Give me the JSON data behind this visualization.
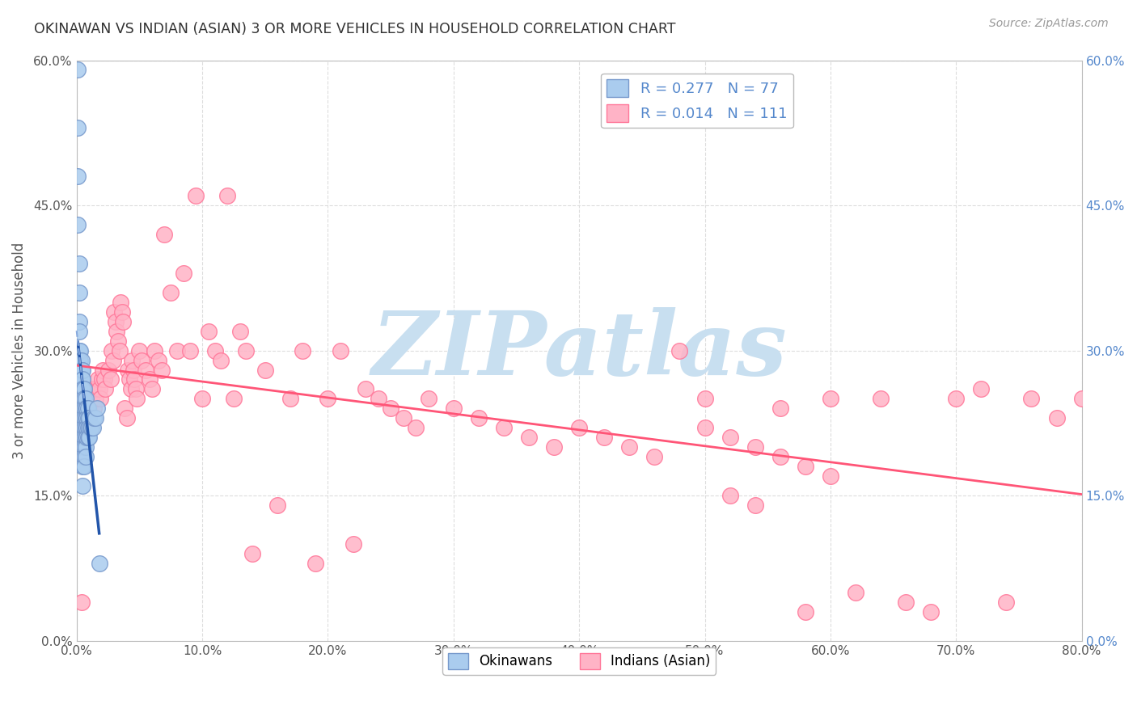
{
  "title": "OKINAWAN VS INDIAN (ASIAN) 3 OR MORE VEHICLES IN HOUSEHOLD CORRELATION CHART",
  "source": "Source: ZipAtlas.com",
  "ylabel": "3 or more Vehicles in Household",
  "xlim": [
    0.0,
    0.8
  ],
  "ylim": [
    0.0,
    0.6
  ],
  "xticks": [
    0.0,
    0.1,
    0.2,
    0.3,
    0.4,
    0.5,
    0.6,
    0.7,
    0.8
  ],
  "xtick_labels": [
    "0.0%",
    "10.0%",
    "20.0%",
    "30.0%",
    "40.0%",
    "50.0%",
    "60.0%",
    "70.0%",
    "80.0%"
  ],
  "yticks": [
    0.0,
    0.15,
    0.3,
    0.45,
    0.6
  ],
  "ytick_labels": [
    "0.0%",
    "15.0%",
    "30.0%",
    "45.0%",
    "60.0%"
  ],
  "legend1_label": "R = 0.277   N = 77",
  "legend2_label": "R = 0.014   N = 111",
  "group1_name": "Okinawans",
  "group2_name": "Indians (Asian)",
  "background_color": "#FFFFFF",
  "watermark": "ZIPatlas",
  "watermark_color": "#C8DFF0",
  "grid_color": "#DDDDDD",
  "ok_x": [
    0.001,
    0.001,
    0.001,
    0.001,
    0.002,
    0.002,
    0.002,
    0.002,
    0.002,
    0.002,
    0.002,
    0.002,
    0.003,
    0.003,
    0.003,
    0.003,
    0.003,
    0.003,
    0.003,
    0.003,
    0.003,
    0.004,
    0.004,
    0.004,
    0.004,
    0.004,
    0.004,
    0.004,
    0.004,
    0.004,
    0.004,
    0.005,
    0.005,
    0.005,
    0.005,
    0.005,
    0.005,
    0.005,
    0.005,
    0.005,
    0.005,
    0.005,
    0.005,
    0.006,
    0.006,
    0.006,
    0.006,
    0.006,
    0.006,
    0.006,
    0.006,
    0.006,
    0.007,
    0.007,
    0.007,
    0.007,
    0.007,
    0.007,
    0.007,
    0.008,
    0.008,
    0.008,
    0.008,
    0.009,
    0.009,
    0.009,
    0.009,
    0.01,
    0.01,
    0.01,
    0.011,
    0.012,
    0.013,
    0.014,
    0.015,
    0.016,
    0.018
  ],
  "ok_y": [
    0.59,
    0.53,
    0.48,
    0.43,
    0.39,
    0.36,
    0.33,
    0.32,
    0.3,
    0.29,
    0.28,
    0.27,
    0.3,
    0.29,
    0.28,
    0.27,
    0.26,
    0.25,
    0.24,
    0.23,
    0.22,
    0.29,
    0.28,
    0.27,
    0.26,
    0.25,
    0.24,
    0.23,
    0.22,
    0.21,
    0.2,
    0.28,
    0.27,
    0.26,
    0.25,
    0.24,
    0.23,
    0.22,
    0.21,
    0.2,
    0.19,
    0.18,
    0.16,
    0.26,
    0.25,
    0.24,
    0.23,
    0.22,
    0.21,
    0.2,
    0.19,
    0.18,
    0.25,
    0.24,
    0.23,
    0.22,
    0.21,
    0.2,
    0.19,
    0.24,
    0.23,
    0.22,
    0.21,
    0.24,
    0.23,
    0.22,
    0.21,
    0.23,
    0.22,
    0.21,
    0.22,
    0.22,
    0.22,
    0.23,
    0.23,
    0.24,
    0.08
  ],
  "ind_x": [
    0.004,
    0.005,
    0.006,
    0.007,
    0.008,
    0.009,
    0.01,
    0.011,
    0.012,
    0.013,
    0.014,
    0.015,
    0.016,
    0.017,
    0.018,
    0.019,
    0.02,
    0.021,
    0.022,
    0.023,
    0.025,
    0.027,
    0.028,
    0.029,
    0.03,
    0.031,
    0.032,
    0.033,
    0.034,
    0.035,
    0.036,
    0.037,
    0.038,
    0.04,
    0.041,
    0.042,
    0.043,
    0.044,
    0.045,
    0.046,
    0.047,
    0.048,
    0.05,
    0.052,
    0.055,
    0.058,
    0.06,
    0.062,
    0.065,
    0.068,
    0.07,
    0.075,
    0.08,
    0.085,
    0.09,
    0.095,
    0.1,
    0.105,
    0.11,
    0.115,
    0.12,
    0.125,
    0.13,
    0.135,
    0.14,
    0.15,
    0.16,
    0.17,
    0.18,
    0.19,
    0.2,
    0.21,
    0.22,
    0.23,
    0.24,
    0.25,
    0.26,
    0.27,
    0.28,
    0.3,
    0.32,
    0.34,
    0.36,
    0.38,
    0.4,
    0.42,
    0.44,
    0.46,
    0.48,
    0.5,
    0.52,
    0.54,
    0.56,
    0.58,
    0.6,
    0.62,
    0.64,
    0.66,
    0.68,
    0.7,
    0.72,
    0.74,
    0.76,
    0.78,
    0.8,
    0.5,
    0.52,
    0.54,
    0.56,
    0.58,
    0.6
  ],
  "ind_y": [
    0.04,
    0.24,
    0.26,
    0.25,
    0.26,
    0.25,
    0.24,
    0.26,
    0.25,
    0.26,
    0.24,
    0.25,
    0.26,
    0.27,
    0.26,
    0.25,
    0.27,
    0.28,
    0.27,
    0.26,
    0.28,
    0.27,
    0.3,
    0.29,
    0.34,
    0.33,
    0.32,
    0.31,
    0.3,
    0.35,
    0.34,
    0.33,
    0.24,
    0.23,
    0.28,
    0.27,
    0.26,
    0.29,
    0.28,
    0.27,
    0.26,
    0.25,
    0.3,
    0.29,
    0.28,
    0.27,
    0.26,
    0.3,
    0.29,
    0.28,
    0.42,
    0.36,
    0.3,
    0.38,
    0.3,
    0.46,
    0.25,
    0.32,
    0.3,
    0.29,
    0.46,
    0.25,
    0.32,
    0.3,
    0.09,
    0.28,
    0.14,
    0.25,
    0.3,
    0.08,
    0.25,
    0.3,
    0.1,
    0.26,
    0.25,
    0.24,
    0.23,
    0.22,
    0.25,
    0.24,
    0.23,
    0.22,
    0.21,
    0.2,
    0.22,
    0.21,
    0.2,
    0.19,
    0.3,
    0.25,
    0.15,
    0.14,
    0.24,
    0.03,
    0.25,
    0.05,
    0.25,
    0.04,
    0.03,
    0.25,
    0.26,
    0.04,
    0.25,
    0.23,
    0.25,
    0.22,
    0.21,
    0.2,
    0.19,
    0.18,
    0.17
  ]
}
